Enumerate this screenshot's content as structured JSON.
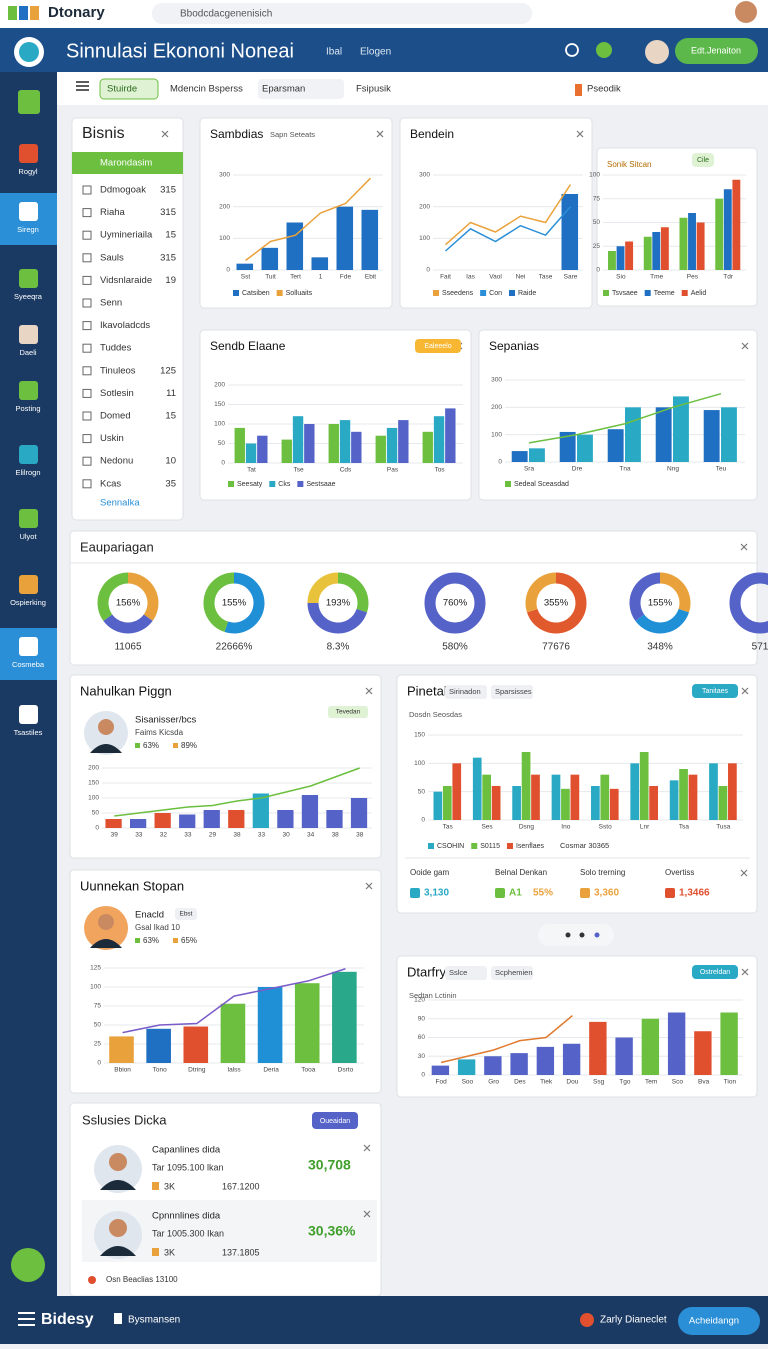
{
  "browser": {
    "brand": "Dtonary",
    "url": "Bbodcdacgenenisich"
  },
  "header": {
    "title": "Sinnulasi Ekononi Noneai",
    "links": [
      "Ibal",
      "Elogen"
    ],
    "button": "Edt.Jenaiton"
  },
  "sidebar": [
    "Rogyl",
    "Siregn",
    "Syeeqra",
    "Daeli",
    "Posting",
    "Elilrogn",
    "Ulyot",
    "Ospierking",
    "Cosmeba",
    "Tsastiles"
  ],
  "toolbar": {
    "active": "Stuirde",
    "tabs": [
      "Mdencin Bsperss",
      "Eparsman",
      "Fsipusik"
    ],
    "select": "Pseodik"
  },
  "list": {
    "title": "Bisnis",
    "header": "Marondasim",
    "items": [
      {
        "label": "Ddmogoak",
        "value": "315"
      },
      {
        "label": "Riaha",
        "value": "315"
      },
      {
        "label": "Uymineriaila",
        "value": "15"
      },
      {
        "label": "Sauls",
        "value": "315"
      },
      {
        "label": "Vidsnlaraide",
        "value": "19"
      },
      {
        "label": "Senn"
      },
      {
        "label": "Ikavoladcds"
      },
      {
        "label": "Tuddes"
      },
      {
        "label": "Tinuleos",
        "value": "125"
      },
      {
        "label": "Sotlesin",
        "value": "11"
      },
      {
        "label": "Domed",
        "value": "15"
      },
      {
        "label": "Uskin"
      },
      {
        "label": "Nedonu",
        "value": "10"
      },
      {
        "label": "Kcas",
        "value": "35"
      }
    ],
    "footer": "Sennalka"
  },
  "panels": [
    {
      "title": "Sambdias",
      "subtitle": "Sapn Seteats",
      "chart": {
        "type": "bar",
        "categories": [
          "Sst",
          "Tuit",
          "Tert",
          "1",
          "Fde",
          "Ebit"
        ],
        "ylim": [
          0,
          300
        ],
        "yticks": [
          0,
          100,
          200,
          300
        ],
        "series": [
          {
            "name": "Catsiben",
            "color": "#1f6fc2",
            "kind": "bar",
            "values": [
              20,
              70,
              150,
              40,
              200,
              190
            ]
          },
          {
            "name": "Solluaits",
            "color": "#e9a23b",
            "kind": "line",
            "values": [
              30,
              90,
              110,
              180,
              210,
              290
            ]
          }
        ]
      }
    },
    {
      "title": "Bendein",
      "chart": {
        "type": "bar",
        "categories": [
          "Fait",
          "Ias",
          "Vaol",
          "Nei",
          "Tase",
          "Sare"
        ],
        "ylim": [
          0,
          300
        ],
        "yticks": [
          0,
          100,
          200,
          300
        ],
        "series": [
          {
            "name": "Sseedens",
            "color": "#e9a23b",
            "kind": "line",
            "values": [
              80,
              150,
              120,
              170,
              150,
              270
            ]
          },
          {
            "name": "Con",
            "color": "#2a8fd6",
            "kind": "line",
            "values": [
              60,
              130,
              90,
              140,
              110,
              200
            ]
          },
          {
            "name": "Raide",
            "color": "#1f6fc2",
            "kind": "bar",
            "values": [
              null,
              null,
              null,
              null,
              null,
              240
            ]
          }
        ]
      }
    },
    {
      "title": "Sonik Sitcan",
      "button": "Cile",
      "chart": {
        "type": "bar",
        "categories": [
          "Sio",
          "Tme",
          "Pes",
          "Tdr"
        ],
        "ylim": [
          0,
          100
        ],
        "yticks": [
          0,
          25,
          50,
          75,
          100
        ],
        "series": [
          {
            "name": "Tsvsaee",
            "color": "#6cbf3f",
            "kind": "bar",
            "values": [
              20,
              35,
              55,
              75
            ]
          },
          {
            "name": "Teeme",
            "color": "#1f6fc2",
            "kind": "bar",
            "values": [
              25,
              40,
              60,
              85
            ]
          },
          {
            "name": "Aelid",
            "color": "#e04f2e",
            "kind": "bar",
            "values": [
              30,
              45,
              50,
              95
            ]
          }
        ]
      }
    },
    {
      "title": "Sendb Elaane",
      "button": "Ealeeelo",
      "chart": {
        "type": "bar",
        "categories": [
          "Tat",
          "Tse",
          "Cds",
          "Pas",
          "Tos"
        ],
        "ylim": [
          0,
          200
        ],
        "yticks": [
          0,
          50,
          100,
          150,
          200
        ],
        "series": [
          {
            "name": "Seesaty",
            "color": "#6cbf3f",
            "kind": "bar",
            "values": [
              90,
              60,
              100,
              70,
              80
            ]
          },
          {
            "name": "Cks",
            "color": "#2aa9c4",
            "kind": "bar",
            "values": [
              50,
              120,
              110,
              90,
              120
            ]
          },
          {
            "name": "Sestsaae",
            "color": "#5562c8",
            "kind": "bar",
            "values": [
              70,
              100,
              80,
              110,
              140
            ]
          }
        ]
      }
    },
    {
      "title": "Sepanias",
      "chart": {
        "type": "bar",
        "categories": [
          "Sra",
          "Dre",
          "Tna",
          "Nng",
          "Teu"
        ],
        "ylim": [
          0,
          300
        ],
        "yticks": [
          0,
          100,
          200,
          300
        ],
        "series": [
          {
            "color": "#1f6fc2",
            "kind": "bar",
            "values": [
              40,
              110,
              120,
              200,
              190
            ]
          },
          {
            "color": "#2aa9c4",
            "kind": "bar",
            "values": [
              50,
              100,
              200,
              240,
              200
            ]
          },
          {
            "name": "Sedeal Sceasdad",
            "color": "#6cbf3f",
            "kind": "line",
            "values": [
              70,
              100,
              140,
              200,
              250
            ]
          }
        ]
      }
    },
    {
      "title": "Nahulkan Piggn",
      "card": {
        "name": "Sisanisser/bcs",
        "sub": "Faims Kicsda",
        "stats": [
          "63%",
          "89%"
        ]
      },
      "badge": "Tevedan",
      "chart": {
        "type": "bar",
        "categories": [
          "39",
          "33",
          "32",
          "33",
          "29",
          "38",
          "33",
          "30",
          "34",
          "38",
          "38"
        ],
        "ylim": [
          0,
          200
        ],
        "yticks": [
          0,
          50,
          100,
          150,
          200
        ],
        "series": [
          {
            "kind": "bar",
            "color": "#5562c8",
            "colors": [
              "#e04f2e",
              "#5562c8",
              "#e04f2e",
              "#5562c8",
              "#5562c8",
              "#e04f2e",
              "#2aa9c4",
              "#5562c8",
              "#5562c8",
              "#5562c8",
              "#5562c8"
            ],
            "values": [
              30,
              30,
              50,
              45,
              60,
              60,
              115,
              60,
              110,
              60,
              100
            ]
          },
          {
            "kind": "line",
            "color": "#6cbf3f",
            "values": [
              40,
              50,
              60,
              70,
              75,
              90,
              100,
              120,
              140,
              170,
              200
            ]
          }
        ]
      }
    },
    {
      "title": "Pinetal",
      "tabs": [
        "Sirinadon",
        "Sparsisses"
      ],
      "button": "Tanitaes",
      "subtitle": "Dosdn Seosdas",
      "chart": {
        "type": "bar",
        "categories": [
          "Tas",
          "Ses",
          "Dsng",
          "Ino",
          "Ssto",
          "Lnr",
          "Tsa",
          "Tusa"
        ],
        "ylim": [
          0,
          150
        ],
        "yticks": [
          0,
          50,
          100,
          150
        ],
        "series": [
          {
            "name": "CSOHIN",
            "color": "#2aa9c4",
            "kind": "bar",
            "values": [
              50,
              110,
              60,
              80,
              60,
              100,
              70,
              100
            ]
          },
          {
            "name": "S0115",
            "color": "#6cbf3f",
            "kind": "bar",
            "values": [
              60,
              80,
              120,
              55,
              80,
              120,
              90,
              60
            ]
          },
          {
            "name": "Isenflaes",
            "color": "#e04f2e",
            "kind": "bar",
            "values": [
              100,
              60,
              80,
              80,
              55,
              60,
              80,
              100
            ]
          }
        ]
      },
      "legend_note": "Cosmar 30365",
      "stats": [
        {
          "label": "Ooide gam",
          "value": "3,130"
        },
        {
          "label": "Belnal Denkan",
          "value": "A1",
          "extra": "55%"
        },
        {
          "label": "Solo trerning",
          "value": "3,360"
        },
        {
          "label": "Overtiss",
          "value": "1,3466"
        }
      ]
    },
    {
      "title": "Uunnekan Stopan",
      "card": {
        "name": "Enacld",
        "sub": "Gsal Ikad 10",
        "stats": [
          "63%",
          "65%"
        ]
      },
      "badge": "Ebst",
      "chart": {
        "type": "bar",
        "categories": [
          "Bbion",
          "Tono",
          "Dtring",
          "Ialss",
          "Deria",
          "Tooa",
          "Dsrto"
        ],
        "ylim": [
          0,
          125
        ],
        "yticks": [
          0,
          25,
          50,
          75,
          100,
          125
        ],
        "series": [
          {
            "kind": "bar",
            "color": "#1f6fc2",
            "colors": [
              "#e9a23b",
              "#1f6fc2",
              "#e04f2e",
              "#6cbf3f",
              "#1f8fd6",
              "#6cbf3f",
              "#2aa98a"
            ],
            "values": [
              35,
              45,
              48,
              78,
              100,
              105,
              120
            ]
          },
          {
            "kind": "line",
            "color": "#7a5cc8",
            "values": [
              40,
              50,
              52,
              88,
              98,
              108,
              124
            ]
          }
        ]
      }
    },
    {
      "title": "Dtarfry",
      "tabs": [
        "Sslce",
        "Scphemien"
      ],
      "button": "Ostreldan",
      "subtitle": "Sedtan Lctinin",
      "chart": {
        "type": "bar",
        "categories": [
          "Fod",
          "Soo",
          "Gro",
          "Des",
          "Tiek",
          "Dou",
          "Ssg",
          "Tgo",
          "Tem",
          "Sco",
          "Bva",
          "Tion"
        ],
        "ylim": [
          0,
          120
        ],
        "yticks": [
          0,
          30,
          60,
          90,
          120
        ],
        "series": [
          {
            "kind": "bar",
            "color": "#5562c8",
            "colors": [
              "#5562c8",
              "#2aa9c4",
              "#5562c8",
              "#5562c8",
              "#5562c8",
              "#5562c8",
              "#e04f2e",
              "#5562c8",
              "#6cbf3f",
              "#5562c8",
              "#e04f2e",
              "#6cbf3f"
            ],
            "values": [
              15,
              25,
              30,
              35,
              45,
              50,
              85,
              60,
              90,
              100,
              70,
              100
            ]
          },
          {
            "kind": "line",
            "color": "#e07a2e",
            "values": [
              20,
              30,
              40,
              55,
              60,
              95,
              null,
              null,
              null,
              null,
              null,
              null
            ]
          }
        ]
      }
    }
  ],
  "donuts": {
    "title": "Eaupariagan",
    "items": [
      {
        "center": "156%",
        "label": "11065",
        "values": [
          35,
          30,
          35
        ],
        "colors": [
          "#e9a23b",
          "#5562c8",
          "#6cbf3f"
        ]
      },
      {
        "center": "155%",
        "label": "22666%",
        "values": [
          55,
          45
        ],
        "colors": [
          "#1f8fd6",
          "#6cbf3f"
        ]
      },
      {
        "center": "193%",
        "label": "8.3%",
        "values": [
          30,
          45,
          25
        ],
        "colors": [
          "#6cbf3f",
          "#5562c8",
          "#e9c23b"
        ]
      },
      {
        "center": "760%",
        "label": "580%",
        "values": [
          100
        ],
        "colors": [
          "#5562c8"
        ]
      },
      {
        "center": "355%",
        "label": "77676",
        "values": [
          70,
          30
        ],
        "colors": [
          "#e05a2e",
          "#e9a23b"
        ]
      },
      {
        "center": "155%",
        "label": "348%",
        "values": [
          30,
          35,
          35
        ],
        "colors": [
          "#e9a23b",
          "#1f8fd6",
          "#5562c8"
        ]
      },
      {
        "label": "571",
        "values": [
          100
        ],
        "colors": [
          "#5562c8"
        ]
      }
    ]
  },
  "solutions": {
    "title": "Sslusies Dicka",
    "button": "Oueaidan",
    "rows": [
      {
        "name": "Capanlines dida",
        "line": "Tar 1095.100 lkan",
        "value": "30,708",
        "tag": "3K",
        "amount": "167.1200"
      },
      {
        "name": "Cpnnnlines dida",
        "line": "Tar 1005.300 Ikan",
        "value": "30,36%",
        "tag": "3K",
        "amount": "137.1805"
      }
    ],
    "footer": "Osn Beaclias 13100"
  },
  "bottom": {
    "brand": "Bidesy",
    "item": "Bysmansen",
    "status": "Zarly Dianeclet",
    "button": "Acheidangn"
  }
}
